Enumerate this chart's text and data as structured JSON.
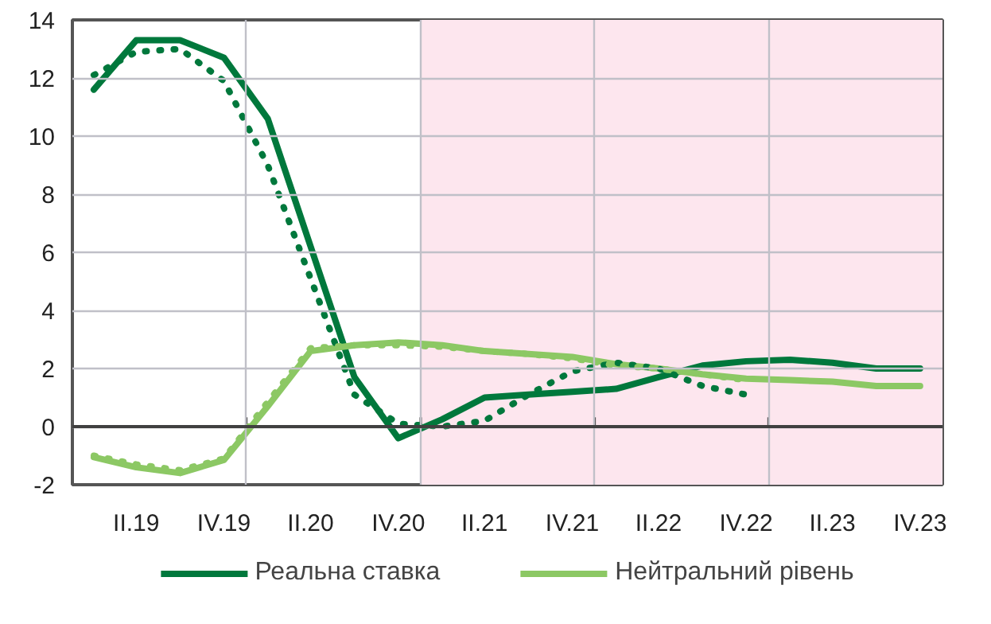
{
  "chart_data": {
    "type": "line",
    "x": [
      "2019-02-15",
      "2019-05-15",
      "2019-08-15",
      "2019-11-15",
      "2020-02-15",
      "2020-05-15",
      "2020-08-15",
      "2020-11-15",
      "2021-02-15",
      "2021-05-15",
      "2021-08-15",
      "2021-11-15",
      "2022-02-15",
      "2022-05-15",
      "2022-08-15",
      "2022-11-15",
      "2023-02-15",
      "2023-05-15",
      "2023-08-15",
      "2023-11-15"
    ],
    "series": [
      {
        "name": "Реальна ставка",
        "color": "#00783c",
        "line_style": "solid",
        "values": [
          11.6,
          13.3,
          13.3,
          12.7,
          10.6,
          6.2,
          1.7,
          -0.4,
          0.25,
          1.0,
          1.1,
          1.2,
          1.3,
          1.7,
          2.1,
          2.25,
          2.3,
          2.2,
          2.0,
          2.0
        ]
      },
      {
        "name": "Нейтральний рівень",
        "color": "#8cc864",
        "line_style": "solid",
        "values": [
          -1.05,
          -1.4,
          -1.6,
          -1.15,
          0.7,
          2.6,
          2.8,
          2.9,
          2.8,
          2.6,
          2.5,
          2.4,
          2.15,
          2.0,
          1.8,
          1.65,
          1.6,
          1.55,
          1.4,
          1.4
        ]
      },
      {
        "color": "#00783c",
        "line_style": "dotted",
        "values": [
          12.1,
          12.9,
          13.0,
          11.9,
          9.0,
          5.1,
          1.1,
          0.1,
          0.0,
          0.2,
          1.1,
          1.9,
          2.2,
          2.0,
          1.4,
          1.1,
          null,
          null,
          null,
          null
        ]
      },
      {
        "color": "#8cc864",
        "line_style": "dotted",
        "values": [
          -1.0,
          -1.3,
          -1.5,
          -1.1,
          0.85,
          2.7,
          2.8,
          2.8,
          2.75,
          2.6,
          2.5,
          2.35,
          2.1,
          2.0,
          1.8,
          1.6,
          null,
          null,
          null,
          null
        ]
      }
    ],
    "xlim": [
      "2019-01-01",
      "2024-01-01"
    ],
    "xticks": [
      {
        "value": "2019-05-15",
        "label": "II.19"
      },
      {
        "value": "2019-11-15",
        "label": "IV.19"
      },
      {
        "value": "2020-05-15",
        "label": "II.20"
      },
      {
        "value": "2020-11-15",
        "label": "IV.20"
      },
      {
        "value": "2021-05-15",
        "label": "II.21"
      },
      {
        "value": "2021-11-15",
        "label": "IV.21"
      },
      {
        "value": "2022-05-15",
        "label": "II.22"
      },
      {
        "value": "2022-11-15",
        "label": "IV.22"
      },
      {
        "value": "2023-05-15",
        "label": "II.23"
      },
      {
        "value": "2023-11-15",
        "label": "IV.23"
      },
      {
        "value": "2020-01-01",
        "label": null
      },
      {
        "value": "2021-01-01",
        "label": null
      },
      {
        "value": "2022-01-01",
        "label": null
      },
      {
        "value": "2023-01-01",
        "label": null
      }
    ],
    "ylim": [
      -2,
      14
    ],
    "yticks": [
      -2,
      0,
      2,
      4,
      6,
      8,
      10,
      12,
      14
    ],
    "bands": [
      {
        "axis": "x",
        "from": "2021-01-01",
        "to": "2024-01-01",
        "color": "#fde6ee"
      }
    ],
    "ref_lines": [
      {
        "axis": "y",
        "value": 0,
        "color": "#404040"
      }
    ],
    "grid": true,
    "legend": "bottom",
    "marker": "none"
  }
}
